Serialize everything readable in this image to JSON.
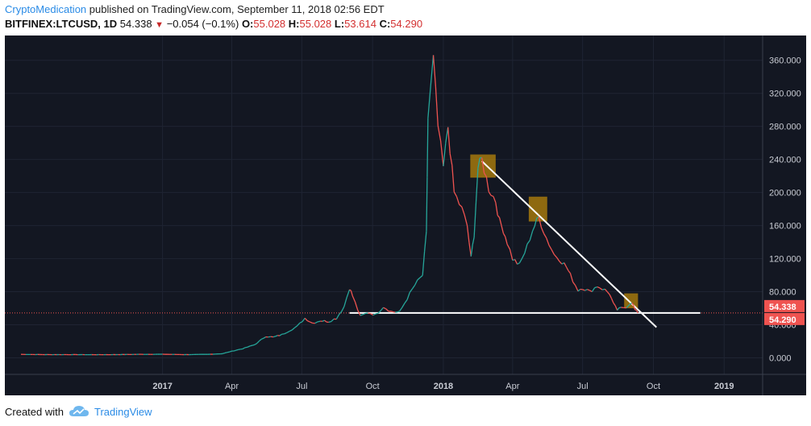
{
  "header": {
    "author": "CryptoMedication",
    "published": " published on TradingView.com, September 11, 2018 02:56 EDT",
    "symbol": "BITFINEX:LTCUSD, 1D",
    "last": "54.338",
    "change": "−0.054 (−0.1%)",
    "o_label": "O:",
    "o_value": "55.028",
    "h_label": "H:",
    "h_value": "55.028",
    "l_label": "L:",
    "l_value": "53.614",
    "c_label": "C:",
    "c_value": "54.290"
  },
  "footer": {
    "created_with": "Created with",
    "brand": "TradingView"
  },
  "colors": {
    "background": "#131722",
    "up": "#26a69a",
    "down": "#ef5350",
    "trendline": "#ffffff",
    "highlight": "#b8860b",
    "price_tag": "#ef5350"
  },
  "chart_data": {
    "type": "line",
    "series": [
      {
        "values": [
          [
            "2016-07-01",
            4.2
          ],
          [
            "2016-08-01",
            3.9
          ],
          [
            "2016-09-01",
            3.9
          ],
          [
            "2016-10-01",
            3.8
          ],
          [
            "2016-11-01",
            3.9
          ],
          [
            "2016-12-01",
            4.2
          ],
          [
            "2017-01-01",
            4.3
          ],
          [
            "2017-02-01",
            3.9
          ],
          [
            "2017-03-01",
            4.2
          ],
          [
            "2017-03-20",
            5.0
          ],
          [
            "2017-04-01",
            8
          ],
          [
            "2017-04-15",
            11
          ],
          [
            "2017-05-01",
            16
          ],
          [
            "2017-05-15",
            26
          ],
          [
            "2017-05-25",
            25
          ],
          [
            "2017-06-05",
            28
          ],
          [
            "2017-06-15",
            33
          ],
          [
            "2017-06-25",
            38
          ],
          [
            "2017-07-05",
            48
          ],
          [
            "2017-07-15",
            42
          ],
          [
            "2017-07-25",
            45
          ],
          [
            "2017-08-05",
            44
          ],
          [
            "2017-08-15",
            48
          ],
          [
            "2017-08-25",
            62
          ],
          [
            "2017-09-01",
            85
          ],
          [
            "2017-09-05",
            75
          ],
          [
            "2017-09-15",
            50
          ],
          [
            "2017-09-25",
            55
          ],
          [
            "2017-10-05",
            52
          ],
          [
            "2017-10-15",
            62
          ],
          [
            "2017-10-25",
            56
          ],
          [
            "2017-11-05",
            55
          ],
          [
            "2017-11-15",
            72
          ],
          [
            "2017-11-25",
            88
          ],
          [
            "2017-12-05",
            100
          ],
          [
            "2017-12-10",
            150
          ],
          [
            "2017-12-12",
            290
          ],
          [
            "2017-12-19",
            360
          ],
          [
            "2017-12-25",
            280
          ],
          [
            "2018-01-01",
            230
          ],
          [
            "2018-01-07",
            280
          ],
          [
            "2018-01-15",
            200
          ],
          [
            "2018-01-25",
            180
          ],
          [
            "2018-02-01",
            160
          ],
          [
            "2018-02-06",
            120
          ],
          [
            "2018-02-10",
            150
          ],
          [
            "2018-02-15",
            230
          ],
          [
            "2018-02-20",
            240
          ],
          [
            "2018-03-01",
            205
          ],
          [
            "2018-03-10",
            190
          ],
          [
            "2018-03-15",
            165
          ],
          [
            "2018-03-20",
            155
          ],
          [
            "2018-03-25",
            140
          ],
          [
            "2018-04-01",
            120
          ],
          [
            "2018-04-10",
            112
          ],
          [
            "2018-04-20",
            135
          ],
          [
            "2018-04-27",
            155
          ],
          [
            "2018-05-05",
            170
          ],
          [
            "2018-05-15",
            145
          ],
          [
            "2018-05-25",
            125
          ],
          [
            "2018-06-01",
            120
          ],
          [
            "2018-06-10",
            110
          ],
          [
            "2018-06-15",
            100
          ],
          [
            "2018-06-25",
            82
          ],
          [
            "2018-07-01",
            85
          ],
          [
            "2018-07-10",
            80
          ],
          [
            "2018-07-20",
            87
          ],
          [
            "2018-07-30",
            82
          ],
          [
            "2018-08-05",
            78
          ],
          [
            "2018-08-10",
            65
          ],
          [
            "2018-08-15",
            58
          ],
          [
            "2018-08-20",
            60
          ],
          [
            "2018-08-27",
            62
          ],
          [
            "2018-09-03",
            68
          ],
          [
            "2018-09-07",
            58
          ],
          [
            "2018-09-11",
            54.3
          ]
        ]
      }
    ],
    "y_ticks": [
      "0.000",
      "40.000",
      "80.000",
      "120.000",
      "160.000",
      "200.000",
      "240.000",
      "280.000",
      "320.000",
      "360.000"
    ],
    "x_ticks": [
      "2017",
      "Apr",
      "Jul",
      "Oct",
      "2018",
      "Apr",
      "Jul",
      "Oct",
      "2019"
    ],
    "ylim": [
      -20,
      390
    ],
    "xlim": [
      "2016-06-10",
      "2019-02-20"
    ],
    "grid": true,
    "price_tags": [
      "54.338",
      "54.290"
    ],
    "support_line": {
      "from": "2017-09-01",
      "to": "2018-12-01",
      "value": 54.3
    },
    "trendline": {
      "from": [
        "2018-02-20",
        238
      ],
      "to": [
        "2018-10-05",
        37
      ]
    },
    "highlights": [
      {
        "x0": "2018-02-05",
        "x1": "2018-03-10",
        "y0": 218,
        "y1": 246
      },
      {
        "x0": "2018-04-22",
        "x1": "2018-05-16",
        "y0": 165,
        "y1": 195
      },
      {
        "x0": "2018-08-24",
        "x1": "2018-09-11",
        "y0": 60,
        "y1": 78
      }
    ]
  }
}
